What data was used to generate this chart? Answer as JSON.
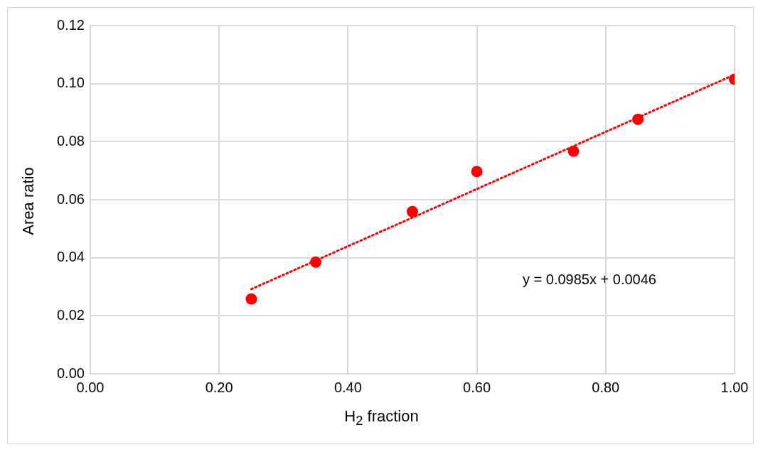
{
  "chart_data": {
    "type": "scatter",
    "xlabel": "H$_{2}$ fraction",
    "ylabel": "Area ratio",
    "x": [
      0.25,
      0.35,
      0.5,
      0.6,
      0.75,
      0.85,
      1.0
    ],
    "series": [
      {
        "type": "scatter",
        "color": "#ff0000",
        "marker": "circle",
        "values": [
          0.0258,
          0.0385,
          0.0559,
          0.0697,
          0.0767,
          0.0877,
          0.1015
        ]
      },
      {
        "type": "line",
        "color": "#ff0000",
        "line_style": "dotted",
        "marker": "none",
        "x": [
          0.25,
          1.0
        ],
        "values": [
          0.0292,
          0.1031
        ]
      }
    ],
    "xlim": [
      0,
      1
    ],
    "xticks": [
      {
        "value": 0,
        "label": "0.00"
      },
      {
        "value": 0.2,
        "label": "0.20"
      },
      {
        "value": 0.4,
        "label": "0.40"
      },
      {
        "value": 0.6,
        "label": "0.60"
      },
      {
        "value": 0.8,
        "label": "0.80"
      },
      {
        "value": 1,
        "label": "1.00"
      }
    ],
    "ylim": [
      0,
      0.12
    ],
    "yticks": [
      {
        "value": 0,
        "label": "0.00"
      },
      {
        "value": 0.02,
        "label": "0.02"
      },
      {
        "value": 0.04,
        "label": "0.04"
      },
      {
        "value": 0.06,
        "label": "0.06"
      },
      {
        "value": 0.08,
        "label": "0.08"
      },
      {
        "value": 0.1,
        "label": "0.10"
      },
      {
        "value": 0.12,
        "label": "0.12"
      }
    ],
    "grid": true,
    "legend": false,
    "annotations": [
      "y = 0.0985x + 0.0046"
    ]
  }
}
